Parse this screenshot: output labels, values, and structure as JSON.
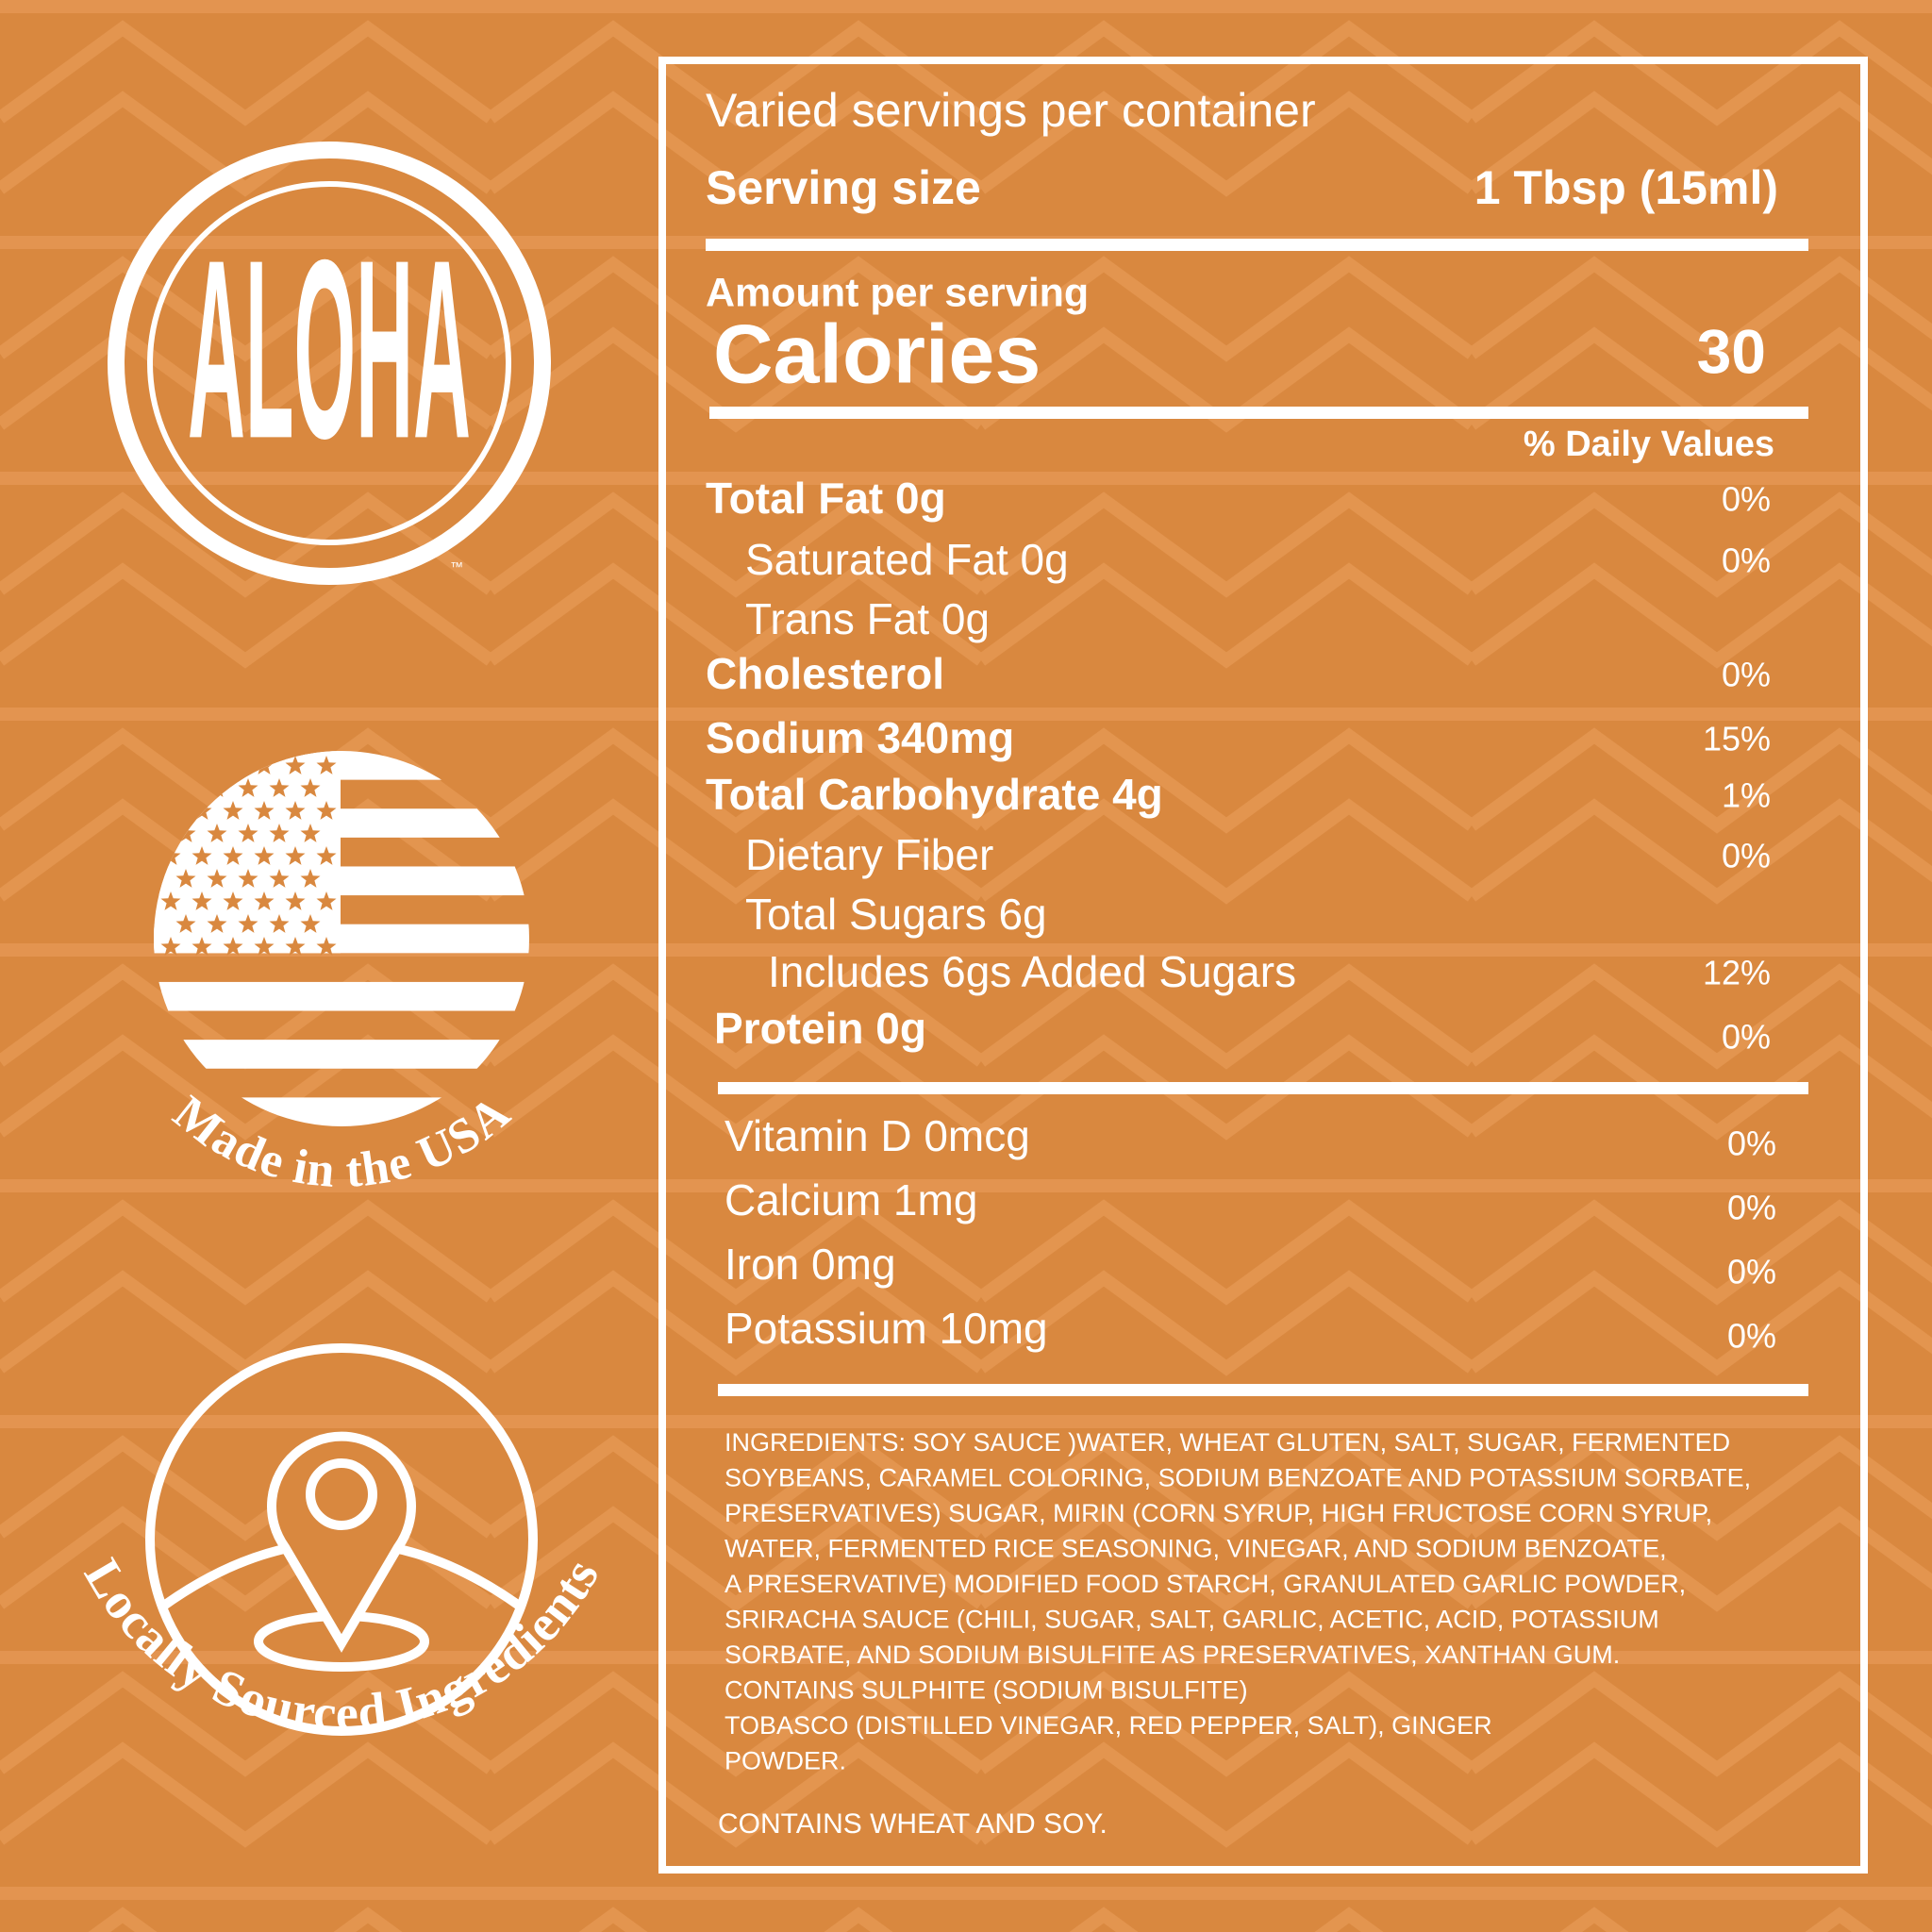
{
  "badges": {
    "logo": "ALOHA",
    "trademark": "™",
    "made_in": "Made in the USA",
    "sourcing": "Locally Sourced Ingredients"
  },
  "nutrition": {
    "servings": "Varied servings per container",
    "serving_size": {
      "label": "Serving size",
      "value": "1 Tbsp (15ml)"
    },
    "amount_per_serving": "Amount per serving",
    "calories": {
      "label": "Calories",
      "value": "30"
    },
    "daily_values_header": "% Daily Values",
    "nutrients": [
      {
        "name": "Total Fat 0g",
        "daily_value": "0%"
      },
      {
        "name": "Saturated Fat 0g",
        "daily_value": "0%"
      },
      {
        "name": "Trans Fat 0g"
      },
      {
        "name": "Cholesterol",
        "daily_value": "0%"
      },
      {
        "name": "Sodium 340mg",
        "daily_value": "15%"
      },
      {
        "name": "Total Carbohydrate 4g",
        "daily_value": "1%"
      },
      {
        "name": "Dietary Fiber",
        "daily_value": "0%"
      },
      {
        "name": "Total Sugars 6g"
      },
      {
        "name": "Includes 6gs Added Sugars",
        "daily_value": "12%"
      },
      {
        "name": "Protein 0g",
        "daily_value": "0%"
      }
    ],
    "vitamins": [
      {
        "name": "Vitamin D 0mcg",
        "daily_value": "0%"
      },
      {
        "name": "Calcium 1mg",
        "daily_value": "0%"
      },
      {
        "name": "Iron 0mg",
        "daily_value": "0%"
      },
      {
        "name": "Potassium 10mg",
        "daily_value": "0%"
      }
    ],
    "ingredients": [
      "INGREDIENTS: SOY SAUCE )WATER, WHEAT GLUTEN, SALT, SUGAR, FERMENTED",
      "SOYBEANS, CARAMEL COLORING, SODIUM BENZOATE AND POTASSIUM SORBATE,",
      "PRESERVATIVES) SUGAR, MIRIN (CORN SYRUP, HIGH FRUCTOSE CORN SYRUP,",
      "WATER, FERMENTED RICE SEASONING, VINEGAR, AND SODIUM BENZOATE,",
      "A PRESERVATIVE) MODIFIED FOOD STARCH, GRANULATED GARLIC POWDER,",
      "SRIRACHA SAUCE (CHILI, SUGAR, SALT, GARLIC, ACETIC, ACID, POTASSIUM",
      "SORBATE, AND SODIUM BISULFITE AS PRESERVATIVES, XANTHAN GUM.",
      "CONTAINS SULPHITE (SODIUM BISULFITE)",
      "TOBASCO (DISTILLED VINEGAR, RED PEPPER, SALT), GINGER",
      "POWDER."
    ],
    "allergens": "CONTAINS WHEAT AND SOY."
  }
}
